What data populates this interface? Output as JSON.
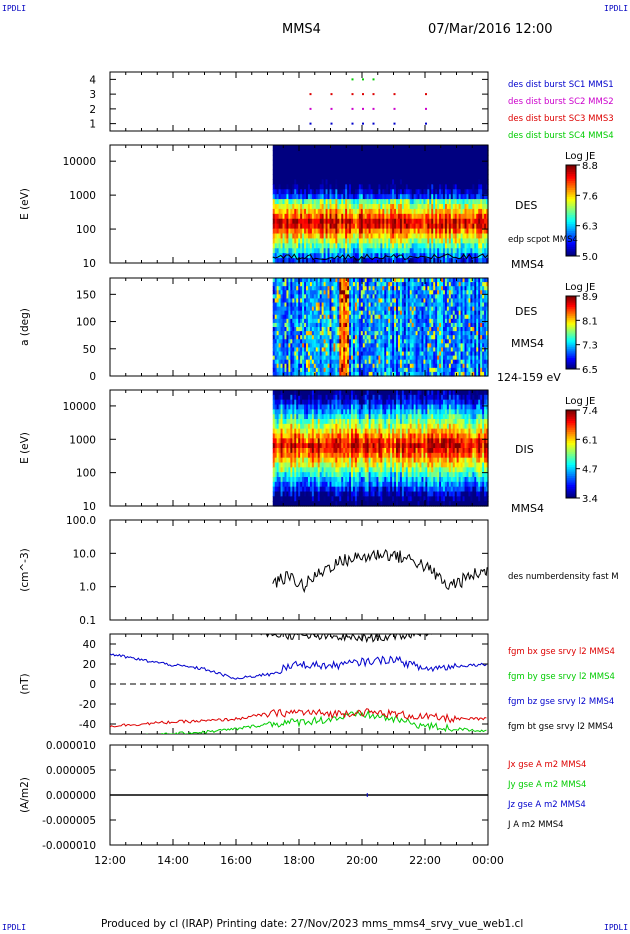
{
  "corner_label": "IPDLI",
  "header": {
    "spacecraft": "MMS4",
    "date_time": "07/Mar/2016 12:00"
  },
  "footer": "Produced by cl (IRAP)   Printing date: 27/Nov/2023   mms_mms4_srvy_vue_web1.cl",
  "colors": {
    "c1": "#0000cc",
    "c2": "#cc00cc",
    "c3": "#dd0000",
    "c4": "#00cc00",
    "black": "#000000"
  },
  "chart_data": [
    {
      "type": "scatter",
      "panel": "burst availability",
      "ylim": [
        0.5,
        4.5
      ],
      "yticks": [
        "1",
        "2",
        "3",
        "4"
      ],
      "legend": [
        {
          "name": "des dist burst SC1 MMS1",
          "color": "#0000cc"
        },
        {
          "name": "des dist burst SC2 MMS2",
          "color": "#cc00cc"
        },
        {
          "name": "des dist burst SC3 MMS3",
          "color": "#dd0000"
        },
        {
          "name": "des dist burst SC4 MMS4",
          "color": "#00cc00"
        }
      ]
    },
    {
      "type": "heatmap",
      "panel": "electron energy spectrogram",
      "ylabel": "E (eV)",
      "yscale": "log",
      "ylim": [
        10,
        30000
      ],
      "yticks": [
        "10",
        "100",
        "1000",
        "10000"
      ],
      "data_start": "17:10",
      "right_labels": [
        "DES",
        "edp scpot MMS4",
        "MMS4"
      ],
      "colorbar": {
        "title": "Log JE",
        "ticks": [
          "8.8",
          "7.6",
          "6.3",
          "5.0"
        ],
        "range": [
          5.0,
          8.8
        ]
      }
    },
    {
      "type": "heatmap",
      "panel": "electron pitch angle",
      "ylabel": "a (deg)",
      "ylim": [
        0,
        180
      ],
      "yticks": [
        "0",
        "50",
        "100",
        "150"
      ],
      "data_start": "17:10",
      "right_labels": [
        "DES",
        "MMS4",
        "124-159 eV"
      ],
      "colorbar": {
        "title": "Log JE",
        "ticks": [
          "8.9",
          "8.1",
          "7.3",
          "6.5"
        ],
        "range": [
          6.5,
          8.9
        ]
      }
    },
    {
      "type": "heatmap",
      "panel": "ion energy spectrogram",
      "ylabel": "E (eV)",
      "yscale": "log",
      "ylim": [
        10,
        30000
      ],
      "yticks": [
        "10",
        "100",
        "1000",
        "10000"
      ],
      "data_start": "17:10",
      "right_labels": [
        "DIS",
        "MMS4"
      ],
      "colorbar": {
        "title": "Log JE",
        "ticks": [
          "7.4",
          "6.1",
          "4.7",
          "3.4"
        ],
        "range": [
          3.4,
          7.4
        ]
      }
    },
    {
      "type": "line",
      "panel": "electron density",
      "ylabel": "(cm^-3)",
      "yscale": "log",
      "ylim": [
        0.1,
        100
      ],
      "yticks": [
        "0.1",
        "1.0",
        "10.0",
        "100.0"
      ],
      "series": [
        {
          "name": "des numberdensity fast M",
          "color": "#000000",
          "x": [
            "17:10",
            "17:40",
            "18:10",
            "18:40",
            "19:10",
            "19:40",
            "20:10",
            "20:40",
            "21:10",
            "21:40",
            "22:10",
            "22:40",
            "23:10",
            "23:40",
            "24:00"
          ],
          "values": [
            1.2,
            2.0,
            1.0,
            2.5,
            5.0,
            7.0,
            8.0,
            10.0,
            8.0,
            6.0,
            3.0,
            1.0,
            1.5,
            2.5,
            3.0
          ]
        }
      ]
    },
    {
      "type": "line",
      "panel": "magnetic field",
      "ylabel": "(nT)",
      "ylim": [
        -50,
        50
      ],
      "yticks": [
        "-40",
        "-20",
        "0",
        "20",
        "40"
      ],
      "series": [
        {
          "name": "fgm bx gse srvy l2 MMS4",
          "color": "#dd0000",
          "x": [
            "12:00",
            "13:00",
            "14:00",
            "15:00",
            "16:00",
            "17:00",
            "18:00",
            "19:00",
            "20:00",
            "21:00",
            "22:00",
            "23:00",
            "24:00"
          ],
          "values": [
            -42,
            -40,
            -38,
            -37,
            -35,
            -30,
            -28,
            -30,
            -28,
            -30,
            -33,
            -35,
            -35
          ]
        },
        {
          "name": "fgm by gse srvy l2 MMS4",
          "color": "#00cc00",
          "x": [
            "12:00",
            "13:00",
            "14:00",
            "15:00",
            "16:00",
            "17:00",
            "18:00",
            "19:00",
            "20:00",
            "21:00",
            "22:00",
            "23:00",
            "24:00"
          ],
          "values": [
            -55,
            -52,
            -50,
            -48,
            -45,
            -40,
            -38,
            -35,
            -30,
            -35,
            -42,
            -45,
            -47
          ]
        },
        {
          "name": "fgm bz gse srvy l2 MMS4",
          "color": "#0000cc",
          "x": [
            "12:00",
            "13:00",
            "14:00",
            "15:00",
            "16:00",
            "17:00",
            "18:00",
            "19:00",
            "20:00",
            "21:00",
            "22:00",
            "23:00",
            "24:00"
          ],
          "values": [
            30,
            24,
            19,
            15,
            5,
            10,
            20,
            18,
            22,
            25,
            15,
            18,
            20
          ]
        },
        {
          "name": "fgm bt gse srvy l2 MMS4",
          "color": "#000000",
          "x": [
            "12:00",
            "13:00",
            "14:00",
            "15:00",
            "16:00",
            "17:00",
            "18:00",
            "19:00",
            "20:00",
            "21:00",
            "22:00",
            "23:00",
            "24:00"
          ],
          "values": [
            58,
            56,
            55,
            54,
            54,
            50,
            48,
            47,
            46,
            47,
            52,
            55,
            56
          ]
        }
      ]
    },
    {
      "type": "line",
      "panel": "current density",
      "ylabel": "(A/m2)",
      "ylim": [
        -1e-05,
        1e-05
      ],
      "yticks": [
        "-0.000010",
        "-0.000005",
        "0.000000",
        "0.000005",
        "0.000010"
      ],
      "series": [
        {
          "name": "Jx gse A m2 MMS4",
          "color": "#dd0000"
        },
        {
          "name": "Jy gse A m2 MMS4",
          "color": "#00cc00"
        },
        {
          "name": "Jz gse A m2 MMS4",
          "color": "#0000cc"
        },
        {
          "name": "J A m2 MMS4",
          "color": "#000000"
        }
      ]
    }
  ],
  "xaxis": {
    "ticks": [
      "12:00",
      "14:00",
      "16:00",
      "18:00",
      "20:00",
      "22:00",
      "00:00"
    ]
  }
}
